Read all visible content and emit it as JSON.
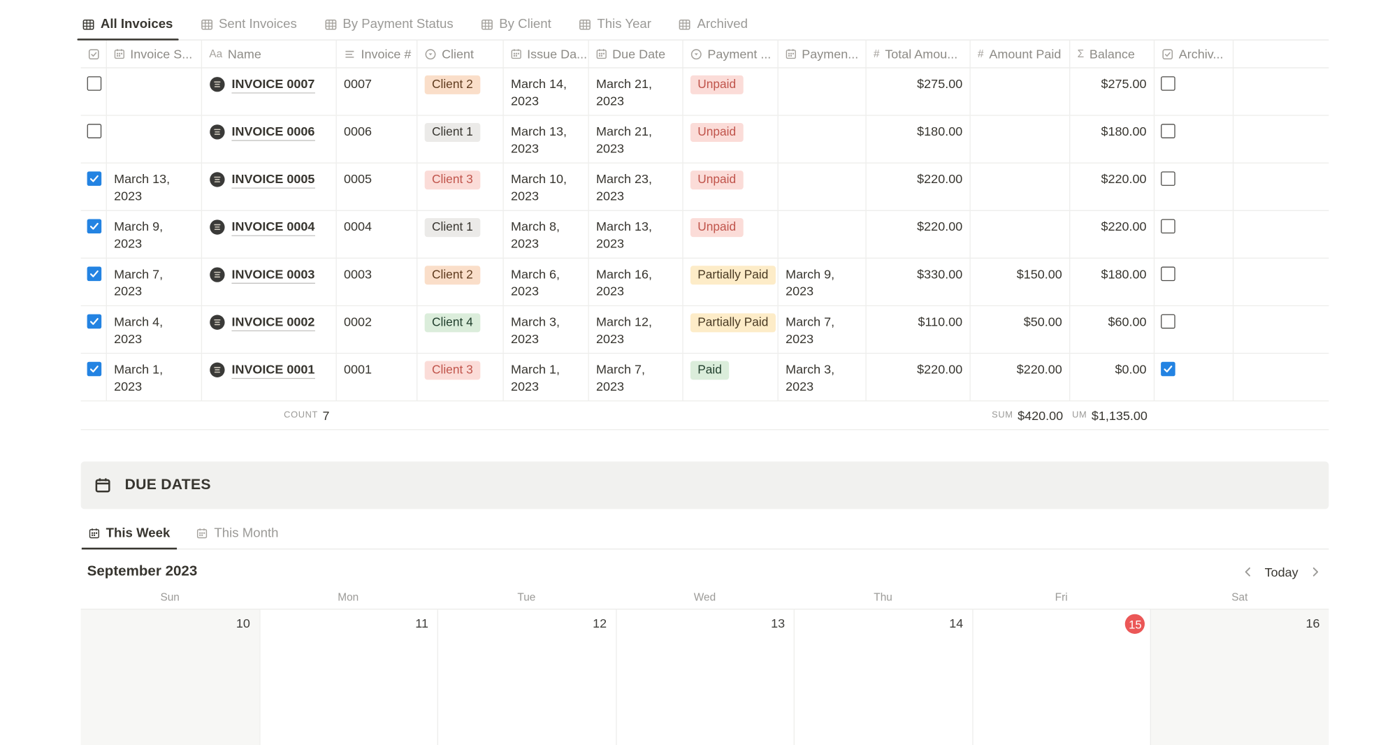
{
  "view_tabs": [
    {
      "label": "All Invoices",
      "active": true
    },
    {
      "label": "Sent Invoices",
      "active": false
    },
    {
      "label": "By Payment Status",
      "active": false
    },
    {
      "label": "By Client",
      "active": false
    },
    {
      "label": "This Year",
      "active": false
    },
    {
      "label": "Archived",
      "active": false
    }
  ],
  "table": {
    "columns": [
      {
        "icon": "checkbox-icon",
        "label": ""
      },
      {
        "icon": "calendar-icon",
        "label": "Invoice S..."
      },
      {
        "icon": "text-icon",
        "label": "Name"
      },
      {
        "icon": "list-icon",
        "label": "Invoice #"
      },
      {
        "icon": "select-icon",
        "label": "Client"
      },
      {
        "icon": "calendar-icon",
        "label": "Issue Da..."
      },
      {
        "icon": "calendar-icon",
        "label": "Due Date"
      },
      {
        "icon": "select-icon",
        "label": "Payment ..."
      },
      {
        "icon": "calendar-icon",
        "label": "Paymen..."
      },
      {
        "icon": "number-icon",
        "label": "Total Amou..."
      },
      {
        "icon": "number-icon",
        "label": "Amount Paid"
      },
      {
        "icon": "sum-icon",
        "label": "Balance"
      },
      {
        "icon": "checkbox-icon",
        "label": "Archiv..."
      },
      {
        "icon": "",
        "label": ""
      }
    ],
    "rows": [
      {
        "selected": false,
        "invoice_sent": "",
        "name": "INVOICE 0007",
        "invoice_num": "0007",
        "client": "Client 2",
        "client_color": "orange",
        "issue_date": "March 14, 2023",
        "due_date": "March 21, 2023",
        "payment_status": "Unpaid",
        "payment_status_color": "red",
        "payment_date": "",
        "total_amount": "$275.00",
        "amount_paid": "",
        "balance": "$275.00",
        "archived": false
      },
      {
        "selected": false,
        "invoice_sent": "",
        "name": "INVOICE 0006",
        "invoice_num": "0006",
        "client": "Client 1",
        "client_color": "gray",
        "issue_date": "March 13, 2023",
        "due_date": "March 21, 2023",
        "payment_status": "Unpaid",
        "payment_status_color": "red",
        "payment_date": "",
        "total_amount": "$180.00",
        "amount_paid": "",
        "balance": "$180.00",
        "archived": false
      },
      {
        "selected": true,
        "invoice_sent": "March 13, 2023",
        "name": "INVOICE 0005",
        "invoice_num": "0005",
        "client": "Client 3",
        "client_color": "red",
        "issue_date": "March 10, 2023",
        "due_date": "March 23, 2023",
        "payment_status": "Unpaid",
        "payment_status_color": "red",
        "payment_date": "",
        "total_amount": "$220.00",
        "amount_paid": "",
        "balance": "$220.00",
        "archived": false
      },
      {
        "selected": true,
        "invoice_sent": "March 9, 2023",
        "name": "INVOICE 0004",
        "invoice_num": "0004",
        "client": "Client 1",
        "client_color": "gray",
        "issue_date": "March 8, 2023",
        "due_date": "March 13, 2023",
        "payment_status": "Unpaid",
        "payment_status_color": "red",
        "payment_date": "",
        "total_amount": "$220.00",
        "amount_paid": "",
        "balance": "$220.00",
        "archived": false
      },
      {
        "selected": true,
        "invoice_sent": "March 7, 2023",
        "name": "INVOICE 0003",
        "invoice_num": "0003",
        "client": "Client 2",
        "client_color": "orange",
        "issue_date": "March 6, 2023",
        "due_date": "March 16, 2023",
        "payment_status": "Partially Paid",
        "payment_status_color": "yellow",
        "payment_date": "March 9, 2023",
        "total_amount": "$330.00",
        "amount_paid": "$150.00",
        "balance": "$180.00",
        "archived": false
      },
      {
        "selected": true,
        "invoice_sent": "March 4, 2023",
        "name": "INVOICE 0002",
        "invoice_num": "0002",
        "client": "Client 4",
        "client_color": "green",
        "issue_date": "March 3, 2023",
        "due_date": "March 12, 2023",
        "payment_status": "Partially Paid",
        "payment_status_color": "yellow",
        "payment_date": "March 7, 2023",
        "total_amount": "$110.00",
        "amount_paid": "$50.00",
        "balance": "$60.00",
        "archived": false
      },
      {
        "selected": true,
        "invoice_sent": "March 1, 2023",
        "name": "INVOICE 0001",
        "invoice_num": "0001",
        "client": "Client 3",
        "client_color": "red",
        "issue_date": "March 1, 2023",
        "due_date": "March 7, 2023",
        "payment_status": "Paid",
        "payment_status_color": "green",
        "payment_date": "March 3, 2023",
        "total_amount": "$220.00",
        "amount_paid": "$220.00",
        "balance": "$0.00",
        "archived": true
      }
    ],
    "footer": {
      "count_label": "COUNT",
      "count_value": "7",
      "paid_sum_label": "SUM",
      "paid_sum_value": "$420.00",
      "balance_sum_label": "UM",
      "balance_sum_value": "$1,135.00"
    }
  },
  "due_dates": {
    "title": "DUE DATES",
    "tabs": [
      {
        "label": "This Week",
        "active": true
      },
      {
        "label": "This Month",
        "active": false
      }
    ]
  },
  "calendar": {
    "month_title": "September 2023",
    "today_label": "Today",
    "day_names": [
      "Sun",
      "Mon",
      "Tue",
      "Wed",
      "Thu",
      "Fri",
      "Sat"
    ],
    "days": [
      {
        "num": "10",
        "weekend": true,
        "today": false
      },
      {
        "num": "11",
        "weekend": false,
        "today": false
      },
      {
        "num": "12",
        "weekend": false,
        "today": false
      },
      {
        "num": "13",
        "weekend": false,
        "today": false
      },
      {
        "num": "14",
        "weekend": false,
        "today": false
      },
      {
        "num": "15",
        "weekend": false,
        "today": true
      },
      {
        "num": "16",
        "weekend": true,
        "today": false
      }
    ]
  },
  "colors": {
    "checkbox_blue": "#2383e2",
    "today_red": "#eb5757",
    "banner_bg": "#f1f1ef",
    "weekend_bg": "#f7f7f5",
    "border": "#e9e9e7",
    "tag_orange_bg": "#fadec9",
    "tag_orange_text": "#5f3a1d",
    "tag_gray_bg": "#ebeae8",
    "tag_gray_text": "#37352f",
    "tag_red_bg": "#fbdcd8",
    "tag_red_text": "#c0544b",
    "tag_green_bg": "#dbeddb",
    "tag_green_text": "#1f3d2b",
    "tag_yellow_bg": "#fdecc8",
    "tag_yellow_text": "#473821"
  }
}
